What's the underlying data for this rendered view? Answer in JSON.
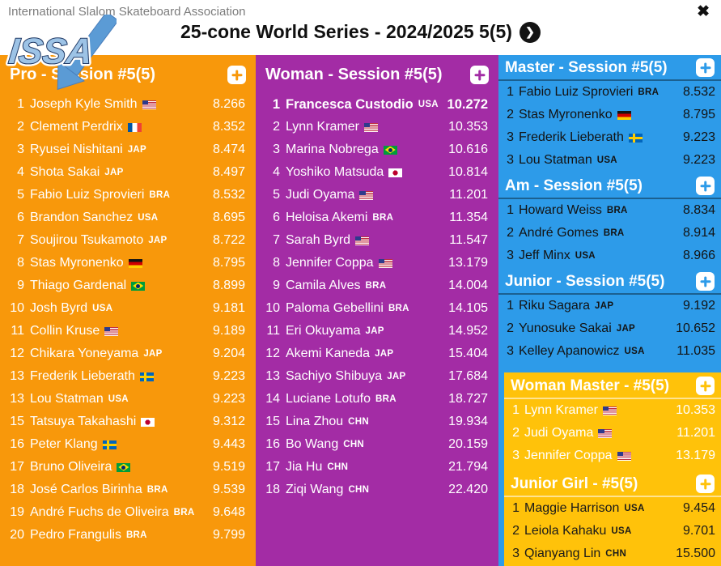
{
  "header": {
    "association": "International Slalom Skateboard Association",
    "title": "25-cone World Series - 2024/2025 5(5)",
    "logo_text": "ISSA"
  },
  "icons": {
    "close": "✖",
    "next_chevron": "❯",
    "add": "+"
  },
  "colors": {
    "orange": "#F8980B",
    "purple": "#A32CA5",
    "blue": "#2D9BE9",
    "gold": "#FFC20A",
    "logo_blue": "#5B9BD5"
  },
  "sections": [
    {
      "id": "pro",
      "title": "Pro - Session #5(5)",
      "theme": "orange",
      "host": "col1",
      "rows": [
        {
          "rank": "1",
          "name": "Joseph Kyle Smith",
          "flag": "usa",
          "score": "8.266"
        },
        {
          "rank": "2",
          "name": "Clement Perdrix",
          "flag": "fra",
          "score": "8.352"
        },
        {
          "rank": "3",
          "name": "Ryusei Nishitani",
          "code": "JAP",
          "score": "8.474"
        },
        {
          "rank": "4",
          "name": "Shota Sakai",
          "code": "JAP",
          "score": "8.497"
        },
        {
          "rank": "5",
          "name": "Fabio Luiz Sprovieri",
          "code": "BRA",
          "score": "8.532"
        },
        {
          "rank": "6",
          "name": "Brandon Sanchez",
          "code": "USA",
          "score": "8.695"
        },
        {
          "rank": "7",
          "name": "Soujirou Tsukamoto",
          "code": "JAP",
          "score": "8.722"
        },
        {
          "rank": "8",
          "name": "Stas Myronenko",
          "flag": "ger",
          "score": "8.795"
        },
        {
          "rank": "9",
          "name": "Thiago Gardenal",
          "flag": "bra",
          "score": "8.899"
        },
        {
          "rank": "10",
          "name": "Josh Byrd",
          "code": "USA",
          "score": "9.181"
        },
        {
          "rank": "11",
          "name": "Collin Kruse",
          "flag": "usa",
          "score": "9.189"
        },
        {
          "rank": "12",
          "name": "Chikara Yoneyama",
          "code": "JAP",
          "score": "9.204"
        },
        {
          "rank": "13",
          "name": "Frederik Lieberath",
          "flag": "swe",
          "score": "9.223"
        },
        {
          "rank": "13",
          "name": "Lou Statman",
          "code": "USA",
          "score": "9.223"
        },
        {
          "rank": "15",
          "name": "Tatsuya Takahashi",
          "flag": "jpn",
          "score": "9.312"
        },
        {
          "rank": "16",
          "name": "Peter Klang",
          "flag": "swe",
          "score": "9.443"
        },
        {
          "rank": "17",
          "name": "Bruno Oliveira",
          "flag": "bra",
          "score": "9.519"
        },
        {
          "rank": "18",
          "name": "José Carlos Birinha",
          "code": "BRA",
          "score": "9.539"
        },
        {
          "rank": "19",
          "name": "André Fuchs de Oliveira",
          "code": "BRA",
          "score": "9.648"
        },
        {
          "rank": "20",
          "name": "Pedro Frangulis",
          "code": "BRA",
          "score": "9.799"
        }
      ]
    },
    {
      "id": "woman",
      "title": "Woman - Session #5(5)",
      "theme": "purple",
      "host": "col2",
      "rows": [
        {
          "rank": "1",
          "name": "Francesca Custodio",
          "code": "USA",
          "score": "10.272",
          "bold": true
        },
        {
          "rank": "2",
          "name": "Lynn Kramer",
          "flag": "usa",
          "score": "10.353"
        },
        {
          "rank": "3",
          "name": "Marina Nobrega",
          "flag": "bra",
          "score": "10.616"
        },
        {
          "rank": "4",
          "name": "Yoshiko Matsuda",
          "flag": "jpn",
          "score": "10.814"
        },
        {
          "rank": "5",
          "name": "Judi Oyama",
          "flag": "usa",
          "score": "11.201"
        },
        {
          "rank": "6",
          "name": "Heloisa Akemi",
          "code": "BRA",
          "score": "11.354"
        },
        {
          "rank": "7",
          "name": "Sarah Byrd",
          "flag": "usa",
          "score": "11.547"
        },
        {
          "rank": "8",
          "name": "Jennifer Coppa",
          "flag": "usa",
          "score": "13.179"
        },
        {
          "rank": "9",
          "name": "Camila Alves",
          "code": "BRA",
          "score": "14.004"
        },
        {
          "rank": "10",
          "name": "Paloma Gebellini",
          "code": "BRA",
          "score": "14.105"
        },
        {
          "rank": "11",
          "name": "Eri Okuyama",
          "code": "JAP",
          "score": "14.952"
        },
        {
          "rank": "12",
          "name": "Akemi Kaneda",
          "code": "JAP",
          "score": "15.404"
        },
        {
          "rank": "13",
          "name": "Sachiyo Shibuya",
          "code": "JAP",
          "score": "17.684"
        },
        {
          "rank": "14",
          "name": "Luciane Lotufo",
          "code": "BRA",
          "score": "18.727"
        },
        {
          "rank": "15",
          "name": "Lina Zhou",
          "code": "CHN",
          "score": "19.934"
        },
        {
          "rank": "16",
          "name": "Bo Wang",
          "code": "CHN",
          "score": "20.159"
        },
        {
          "rank": "17",
          "name": "Jia Hu",
          "code": "CHN",
          "score": "21.794"
        },
        {
          "rank": "18",
          "name": "Ziqi Wang",
          "code": "CHN",
          "score": "22.420"
        }
      ]
    },
    {
      "id": "master",
      "title": "Master - Session #5(5)",
      "theme": "blue",
      "host": "col3-blue",
      "rows": [
        {
          "rank": "1",
          "name": "Fabio Luiz Sprovieri",
          "code": "BRA",
          "score": "8.532"
        },
        {
          "rank": "2",
          "name": "Stas Myronenko",
          "flag": "ger",
          "score": "8.795"
        },
        {
          "rank": "3",
          "name": "Frederik Lieberath",
          "flag": "swe",
          "score": "9.223"
        },
        {
          "rank": "3",
          "name": "Lou Statman",
          "code": "USA",
          "score": "9.223"
        }
      ]
    },
    {
      "id": "am",
      "title": "Am - Session #5(5)",
      "theme": "blue",
      "host": "col3-blue",
      "rows": [
        {
          "rank": "1",
          "name": "Howard Weiss",
          "code": "BRA",
          "score": "8.834"
        },
        {
          "rank": "2",
          "name": "André Gomes",
          "code": "BRA",
          "score": "8.914"
        },
        {
          "rank": "3",
          "name": "Jeff Minx",
          "code": "USA",
          "score": "8.966"
        }
      ]
    },
    {
      "id": "junior",
      "title": "Junior - Session #5(5)",
      "theme": "blue",
      "host": "col3-blue",
      "rows": [
        {
          "rank": "1",
          "name": "Riku Sagara",
          "code": "JAP",
          "score": "9.192"
        },
        {
          "rank": "2",
          "name": "Yunosuke Sakai",
          "code": "JAP",
          "score": "10.652"
        },
        {
          "rank": "3",
          "name": "Kelley Apanowicz",
          "code": "USA",
          "score": "11.035"
        }
      ]
    },
    {
      "id": "woman-master",
      "title": "Woman Master - #5(5)",
      "theme": "gold-light",
      "host": "col3-gold",
      "rows": [
        {
          "rank": "1",
          "name": "Lynn Kramer",
          "flag": "usa",
          "score": "10.353"
        },
        {
          "rank": "2",
          "name": "Judi Oyama",
          "flag": "usa",
          "score": "11.201"
        },
        {
          "rank": "3",
          "name": "Jennifer Coppa",
          "flag": "usa",
          "score": "13.179"
        }
      ]
    },
    {
      "id": "junior-girl",
      "title": "Junior Girl - #5(5)",
      "theme": "gold-dark",
      "host": "col3-gold",
      "rows": [
        {
          "rank": "1",
          "name": "Maggie Harrison",
          "code": "USA",
          "score": "9.454"
        },
        {
          "rank": "2",
          "name": "Leiola Kahaku",
          "code": "USA",
          "score": "9.701"
        },
        {
          "rank": "3",
          "name": "Qianyang Lin",
          "code": "CHN",
          "score": "15.500"
        }
      ]
    }
  ]
}
